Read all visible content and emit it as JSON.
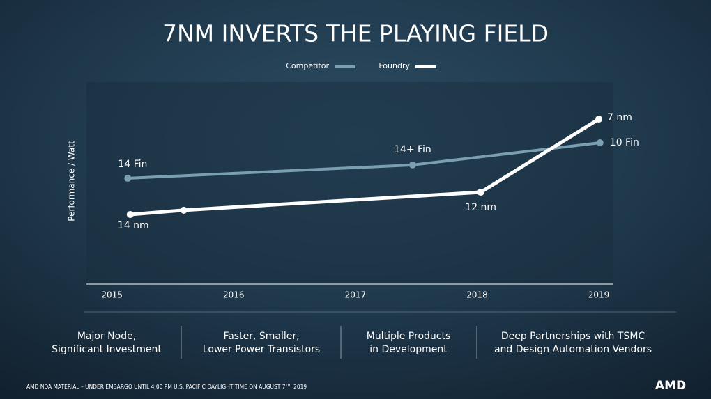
{
  "chart_data": {
    "type": "line",
    "title": "7NM INVERTS THE PLAYING FIELD",
    "y_label": "Performance / Watt",
    "xlim": [
      2014.79,
      2019.12
    ],
    "xticks": [
      2015,
      2016,
      2017,
      2018,
      2019
    ],
    "ylim": [
      0,
      100
    ],
    "series": [
      {
        "name": "Competitor",
        "color": "#7a9fb0",
        "x": [
          2015.13,
          2017.47,
          2019.01
        ],
        "values": [
          52.4,
          59,
          70
        ],
        "point_labels": [
          "14 Fin",
          "14+ Fin",
          "10 Fin"
        ]
      },
      {
        "name": "Foundry",
        "color": "#ffffff",
        "x": [
          2015.15,
          2015.59,
          2018.03,
          2019.0
        ],
        "values": [
          34.5,
          36.6,
          45.5,
          81.7
        ],
        "point_labels": [
          "14 nm",
          null,
          "12 nm",
          "7 nm"
        ]
      }
    ]
  },
  "pillars": [
    [
      "Major Node,",
      "Significant Investment"
    ],
    [
      "Faster, Smaller,",
      "Lower Power Transistors"
    ],
    [
      "Multiple Products",
      "in Development"
    ],
    [
      "Deep Partnerships with TSMC",
      "and Design Automation Vendors"
    ]
  ],
  "footer": {
    "pre": "AMD  NDA MATERIAL – UNDER  EMBARGO UNTIL 4:00 PM U.S. PACIFIC DAYLIGHT TIME ON AUGUST 7",
    "sup": "TH",
    "post": ", 2019"
  },
  "logo": "AMD"
}
